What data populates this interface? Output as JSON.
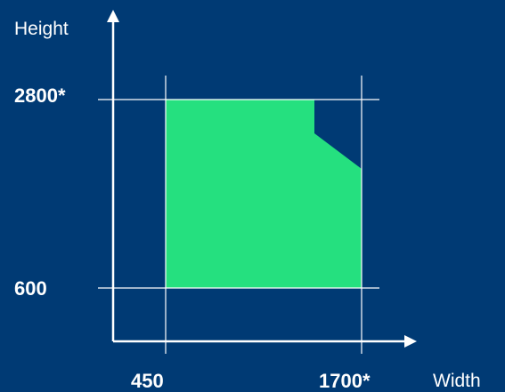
{
  "colors": {
    "background": "#003a74",
    "area_fill": "#25e07f",
    "lines": "#ffffff"
  },
  "axes": {
    "x_title": "Width",
    "y_title": "Height"
  },
  "ticks": {
    "x_min_label": "450",
    "x_max_label": "1700*",
    "y_min_label": "600",
    "y_max_label": "2800*"
  }
}
